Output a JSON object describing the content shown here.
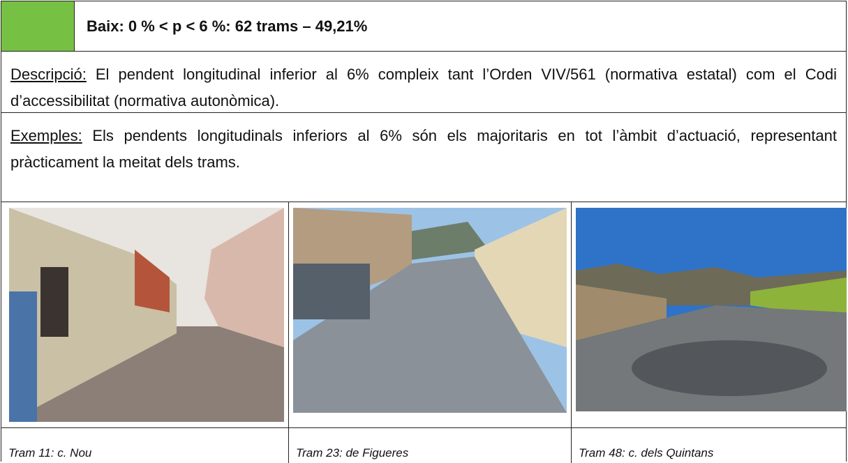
{
  "header": {
    "title": "Baix: 0 % < p < 6 %: 62 trams – 49,21%"
  },
  "description": {
    "label": "Descripció:",
    "text": "El pendent longitudinal inferior al 6% compleix tant l’Orden VIV/561 (normativa estatal) com el Codi d’accessibilitat (normativa autonòmica)."
  },
  "examples": {
    "label": "Exemples:",
    "text": "Els pendents longitudinals inferiors al 6% són els majoritaris en tot l’àmbit d’actuació, representant pràcticament la meitat dels trams."
  },
  "photos": [
    {
      "caption": "Tram 11: c. Nou"
    },
    {
      "caption": "Tram 23: de Figueres"
    },
    {
      "caption": "Tram 48: c. dels Quintans"
    }
  ]
}
